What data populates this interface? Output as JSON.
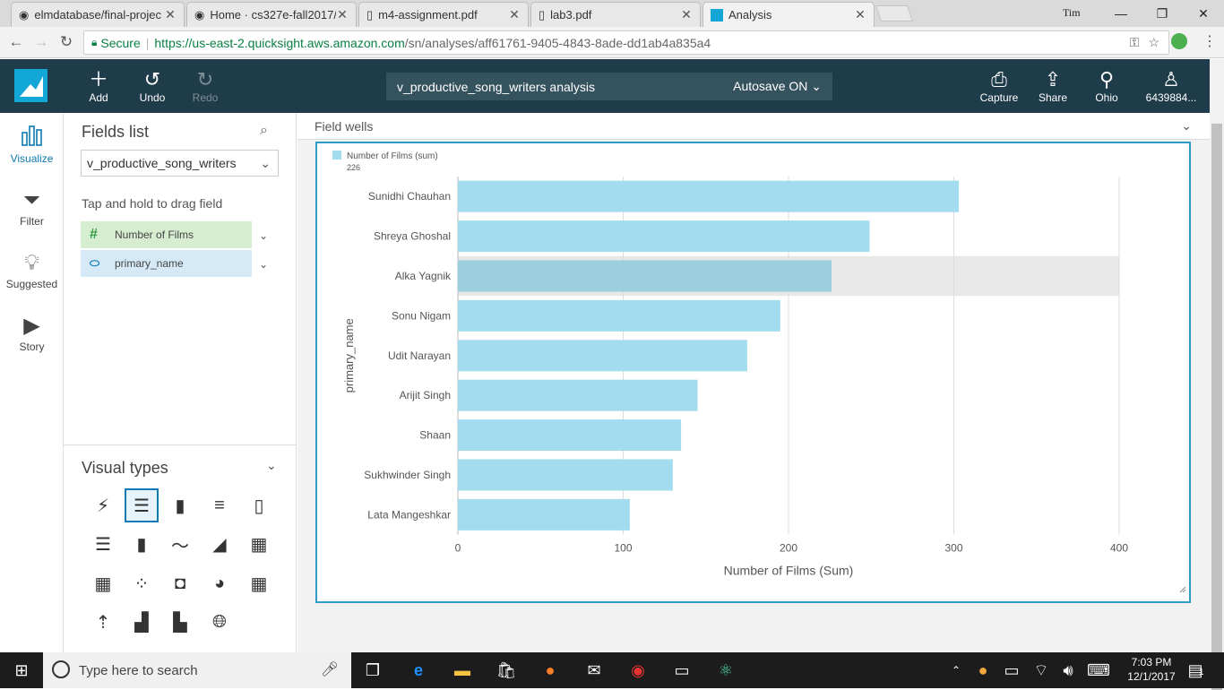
{
  "browser": {
    "tabs": [
      {
        "title": "elmdatabase/final-projec",
        "icon": "github-icon"
      },
      {
        "title": "Home · cs327e-fall2017/s",
        "icon": "github-icon"
      },
      {
        "title": "m4-assignment.pdf",
        "icon": "document-icon"
      },
      {
        "title": "lab3.pdf",
        "icon": "document-icon"
      },
      {
        "title": "Analysis",
        "icon": "quicksight-icon",
        "active": true
      }
    ],
    "user_label": "Tim",
    "secure_label": "Secure",
    "url_base": "https://us-east-2.quicksight.aws.amazon.com",
    "url_path": "/sn/analyses/aff61761-9405-4843-8ade-dd1ab4a835a4"
  },
  "header": {
    "add_label": "Add",
    "undo_label": "Undo",
    "redo_label": "Redo",
    "analysis_title": "v_productive_song_writers analysis",
    "autosave_label": "Autosave ON",
    "capture_label": "Capture",
    "share_label": "Share",
    "region_label": "Ohio",
    "account_label": "6439884..."
  },
  "rail": {
    "visualize": "Visualize",
    "filter": "Filter",
    "suggested": "Suggested",
    "story": "Story"
  },
  "fields": {
    "title": "Fields list",
    "dataset": "v_productive_song_writers",
    "drag_hint": "Tap and hold to drag field",
    "items": [
      {
        "name": "Number of Films",
        "type": "measure"
      },
      {
        "name": "primary_name",
        "type": "dimension"
      }
    ]
  },
  "visual_types": {
    "title": "Visual types"
  },
  "main": {
    "field_wells_label": "Field wells"
  },
  "chart_data": {
    "type": "bar",
    "orientation": "horizontal",
    "legend_label": "Number of Films (sum)",
    "legend_value": "226",
    "categories": [
      "Sunidhi Chauhan",
      "Shreya Ghoshal",
      "Alka Yagnik",
      "Sonu Nigam",
      "Udit Narayan",
      "Arijit Singh",
      "Shaan",
      "Sukhwinder Singh",
      "Lata Mangeshkar"
    ],
    "values": [
      303,
      249,
      226,
      195,
      175,
      145,
      135,
      130,
      104
    ],
    "highlighted": "Alka Yagnik",
    "xlabel": "Number of Films (Sum)",
    "ylabel": "primary_name",
    "xlim": [
      0,
      400
    ],
    "xticks": [
      "0",
      "100",
      "200",
      "300",
      "400"
    ],
    "bar_color": "#a3dcef",
    "highlight_bar_color": "#9bcede",
    "highlight_band_color": "#e8e8e8"
  },
  "taskbar": {
    "search_placeholder": "Type here to search",
    "time": "7:03 PM",
    "date": "12/1/2017",
    "notification_count": "1"
  }
}
